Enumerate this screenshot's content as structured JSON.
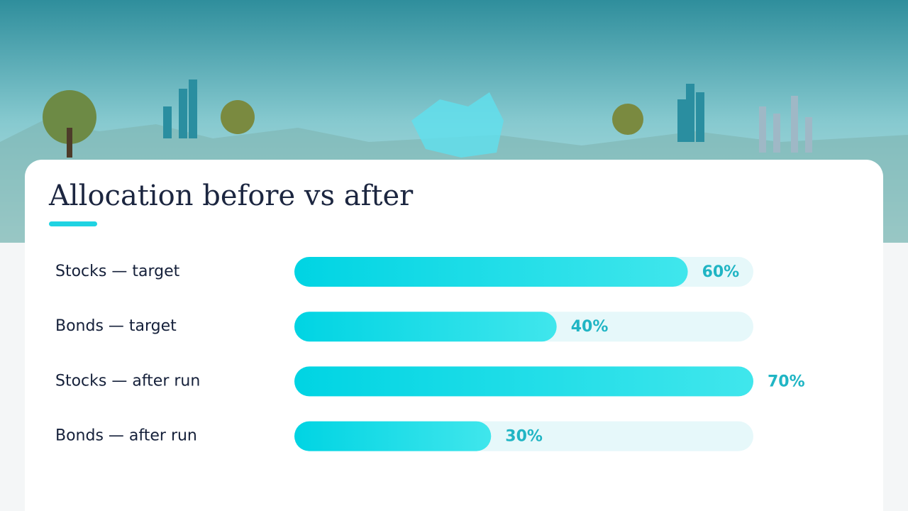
{
  "chart_data": {
    "type": "bar",
    "orientation": "horizontal",
    "title": "Allocation before vs after",
    "categories": [
      "Stocks — target",
      "Bonds — target",
      "Stocks — after run",
      "Bonds — after run"
    ],
    "values": [
      60,
      40,
      70,
      30
    ],
    "value_labels": [
      "60%",
      "40%",
      "70%",
      "30%"
    ],
    "color": "#00d6e4",
    "xlim": [
      0,
      70
    ]
  }
}
